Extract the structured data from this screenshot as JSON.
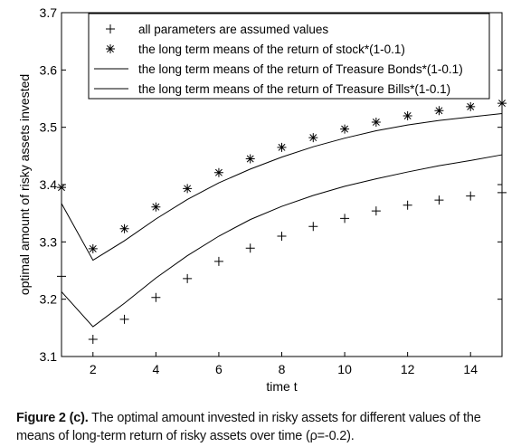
{
  "chart_data": {
    "type": "line",
    "xlabel": "time t",
    "ylabel": "optimal amount of risky assets invested",
    "xlim": [
      1,
      15
    ],
    "ylim": [
      3.1,
      3.7
    ],
    "xticks": [
      "2",
      "4",
      "6",
      "8",
      "10",
      "12",
      "14"
    ],
    "yticks": [
      "3.1",
      "3.2",
      "3.3",
      "3.4",
      "3.5",
      "3.6",
      "3.7"
    ],
    "grid": false,
    "legend_placement": "top-right",
    "x": [
      1,
      2,
      3,
      4,
      5,
      6,
      7,
      8,
      9,
      10,
      11,
      12,
      13,
      14,
      15
    ],
    "series": [
      {
        "name": "all parameters are assumed values",
        "marker": "plus",
        "values": [
          3.24,
          3.13,
          3.165,
          3.203,
          3.236,
          3.266,
          3.289,
          3.31,
          3.327,
          3.341,
          3.354,
          3.364,
          3.373,
          3.38,
          3.386
        ]
      },
      {
        "name": "the long term means of the return of stock*(1-0.1)",
        "marker": "asterisk",
        "values": [
          3.395,
          3.288,
          3.323,
          3.361,
          3.393,
          3.421,
          3.445,
          3.465,
          3.482,
          3.497,
          3.509,
          3.52,
          3.529,
          3.536,
          3.542
        ]
      },
      {
        "name": "the long term means of the return of Treasure Bonds*(1-0.1)",
        "marker": "none",
        "values": [
          3.367,
          3.268,
          3.302,
          3.34,
          3.374,
          3.403,
          3.427,
          3.448,
          3.466,
          3.481,
          3.494,
          3.504,
          3.512,
          3.518,
          3.524
        ]
      },
      {
        "name": "the long term means of the return of Treasure Bills*(1-0.1)",
        "marker": "none",
        "values": [
          3.213,
          3.152,
          3.193,
          3.237,
          3.276,
          3.31,
          3.339,
          3.362,
          3.381,
          3.397,
          3.41,
          3.422,
          3.433,
          3.442,
          3.452
        ]
      }
    ]
  },
  "caption": {
    "bold": "Figure 2 (c).",
    "text": " The optimal amount invested in risky assets for different values of the means of long-term return of risky assets over time (ρ=-0.2)."
  }
}
